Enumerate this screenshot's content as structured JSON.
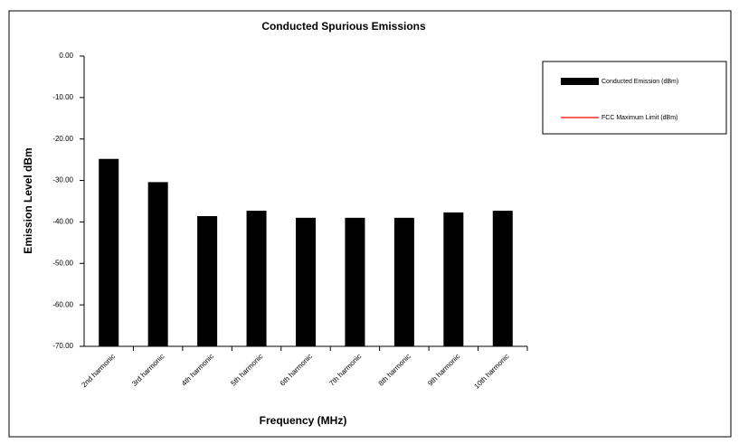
{
  "chart_data": {
    "type": "bar",
    "title": "Conducted Spurious Emissions",
    "x_label": "Frequency (MHz)",
    "y_label": "Emission Level dBm",
    "categories": [
      "2nd harmonic",
      "3rd harmonic",
      "4th harmonic",
      "5th harmonic",
      "6th harmonic",
      "7th harmonic",
      "8th harmonic",
      "9th harmonic",
      "10th harmonic"
    ],
    "series": [
      {
        "name": "Conducted Emission (dBm)",
        "color": "#000000",
        "values": [
          -24.8,
          -30.4,
          -38.6,
          -37.3,
          -39.0,
          -39.0,
          -39.0,
          -37.7,
          -37.3
        ]
      },
      {
        "name": "FCC Maximum Limit (dBm)",
        "color": "#ff0000",
        "values": [
          null,
          null,
          null,
          null,
          null,
          null,
          null,
          null,
          null
        ]
      }
    ],
    "ylim": [
      -70,
      0
    ],
    "yticks": [
      {
        "value": 0,
        "label": "0.00"
      },
      {
        "value": -10,
        "label": "-10.00"
      },
      {
        "value": -20,
        "label": "-20.00"
      },
      {
        "value": -30,
        "label": "-30.00"
      },
      {
        "value": -40,
        "label": "-40.00"
      },
      {
        "value": -50,
        "label": "-50.00"
      },
      {
        "value": -60,
        "label": "-60.00"
      },
      {
        "value": -70,
        "label": "-70.00"
      }
    ],
    "grid": false
  }
}
